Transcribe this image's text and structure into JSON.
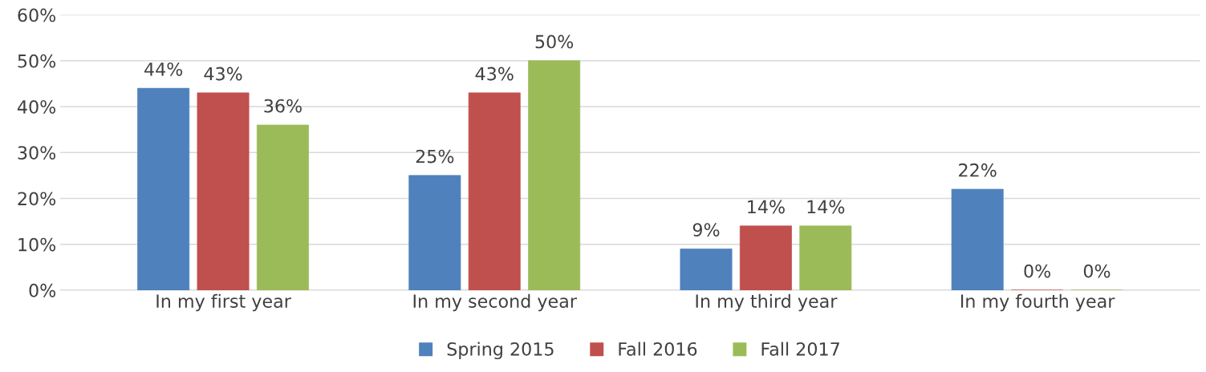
{
  "chart_data": {
    "type": "bar",
    "categories": [
      "In my first year",
      "In my second year",
      "In my third year",
      "In my fourth year"
    ],
    "series": [
      {
        "name": "Spring 2015",
        "color": "#4f81bd",
        "values": [
          44,
          25,
          9,
          22
        ],
        "value_labels": [
          "44%",
          "25%",
          "9%",
          "22%"
        ]
      },
      {
        "name": "Fall 2016",
        "color": "#c0504d",
        "values": [
          43,
          43,
          14,
          0
        ],
        "value_labels": [
          "43%",
          "43%",
          "14%",
          "0%"
        ]
      },
      {
        "name": "Fall 2017",
        "color": "#9bbb59",
        "values": [
          36,
          50,
          14,
          0
        ],
        "value_labels": [
          "36%",
          "50%",
          "14%",
          "0%"
        ]
      }
    ],
    "ylim": [
      0,
      60
    ],
    "yticks": [
      {
        "value": 0,
        "label": "0%"
      },
      {
        "value": 10,
        "label": "10%"
      },
      {
        "value": 20,
        "label": "20%"
      },
      {
        "value": 30,
        "label": "30%"
      },
      {
        "value": 40,
        "label": "40%"
      },
      {
        "value": 50,
        "label": "50%"
      },
      {
        "value": 60,
        "label": "60%"
      }
    ],
    "grid": "y",
    "legend": "bottom"
  }
}
